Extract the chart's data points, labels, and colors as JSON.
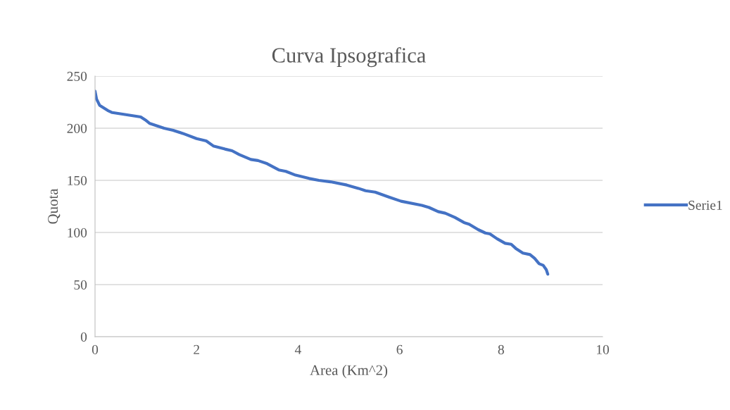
{
  "chart_data": {
    "type": "line",
    "title": "Curva Ipsografica",
    "xlabel": "Area (Km^2)",
    "ylabel": "Quota",
    "xlim": [
      0,
      10
    ],
    "xticks": [
      0,
      2,
      4,
      6,
      8,
      10
    ],
    "ylim": [
      0,
      250
    ],
    "yticks": [
      0,
      50,
      100,
      150,
      200,
      250
    ],
    "grid": "y",
    "legend": "right",
    "marker": "none",
    "line_style": "solid",
    "series": [
      {
        "name": "Serie1",
        "color": "#4472c4",
        "x": [
          0,
          0.03,
          0.09,
          0.25,
          0.34,
          0.9,
          0.99,
          1.08,
          1.36,
          1.54,
          1.73,
          2.0,
          2.19,
          2.33,
          2.56,
          2.7,
          2.84,
          3.07,
          3.21,
          3.39,
          3.62,
          3.76,
          3.95,
          4.22,
          4.41,
          4.64,
          4.96,
          5.19,
          5.33,
          5.52,
          5.79,
          6.03,
          6.44,
          6.58,
          6.76,
          6.9,
          7.09,
          7.27,
          7.37,
          7.55,
          7.69,
          7.78,
          7.92,
          8.08,
          8.2,
          8.29,
          8.43,
          8.57,
          8.66,
          8.75,
          8.83,
          8.89,
          8.92
        ],
        "values": [
          235.6,
          228,
          222,
          217,
          215,
          210.8,
          208,
          204.5,
          200,
          198,
          195,
          190,
          187.8,
          183,
          180,
          178.4,
          174.8,
          170,
          169,
          166,
          160,
          158.6,
          155,
          151.8,
          150,
          148.6,
          145.5,
          142.3,
          140,
          138.7,
          134,
          130,
          126,
          124,
          120,
          118.5,
          114.4,
          109.5,
          108,
          102.7,
          99.5,
          98.6,
          94,
          89.6,
          88.7,
          84.7,
          80.2,
          78.8,
          75.2,
          70,
          68.5,
          64.4,
          60
        ]
      }
    ]
  }
}
